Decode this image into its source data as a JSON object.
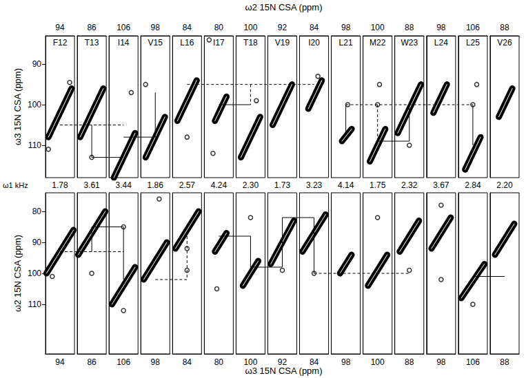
{
  "chart_data": [
    {
      "type": "contour",
      "xlabel": "ω2 15N CSA (ppm)",
      "ylabel": "ω3 15N CSA (ppm)",
      "ylim": [
        83,
        118
      ],
      "yticks": [
        90,
        100,
        110
      ],
      "row_label": "ω1 kHz",
      "row_values": [
        1.78,
        3.61,
        3.44,
        1.86,
        2.57,
        4.24,
        {
          "value": 2.3,
          "label": "2.30"
        },
        1.73,
        3.23,
        4.14,
        1.75,
        2.32,
        3.67,
        2.84,
        {
          "value": 2.2,
          "label": "2.20"
        }
      ],
      "strips": [
        {
          "name": "F12",
          "xlim": [
            86.5,
            101.5
          ],
          "xticks": [
            94
          ],
          "ridges": [
            [
              [
                100,
                96
              ],
              [
                88,
                108
              ]
            ]
          ],
          "peaks": [
            [
              99,
              94.5
            ],
            [
              88,
              111
            ]
          ]
        },
        {
          "name": "T13",
          "xlim": [
            78.5,
            93.5
          ],
          "xticks": [
            86
          ],
          "ridges": [
            [
              [
                92,
                96
              ],
              [
                80,
                108
              ]
            ]
          ],
          "peaks": [
            [
              86,
              113
            ]
          ]
        },
        {
          "name": "I14",
          "xlim": [
            98.5,
            113.5
          ],
          "xticks": [
            106
          ],
          "ridges": [
            [
              [
                112,
                107
              ],
              [
                101,
                118
              ]
            ]
          ],
          "peaks": [
            [
              110,
              97
            ]
          ]
        },
        {
          "name": "V15",
          "xlim": [
            90.5,
            105.5
          ],
          "xticks": [
            98
          ],
          "ridges": [
            [
              [
                103,
                103
              ],
              [
                93,
                113
              ]
            ]
          ],
          "peaks": [
            [
              93,
              95
            ]
          ]
        },
        {
          "name": "L16",
          "xlim": [
            76.5,
            91.5
          ],
          "xticks": [
            84
          ],
          "ridges": [
            [
              [
                89,
                94
              ],
              [
                79,
                104
              ]
            ]
          ],
          "peaks": [
            [
              84,
              108
            ]
          ]
        },
        {
          "name": "I17",
          "xlim": [
            72.5,
            87.5
          ],
          "xticks": [
            80
          ],
          "ridges": [
            [
              [
                84,
                98
              ],
              [
                78,
                104
              ]
            ]
          ],
          "peaks": [
            [
              75,
              84
            ],
            [
              77,
              112
            ]
          ]
        },
        {
          "name": "T18",
          "xlim": [
            92.5,
            107.5
          ],
          "xticks": [
            100
          ],
          "ridges": [
            [
              [
                105,
                103
              ],
              [
                95,
                113
              ]
            ]
          ],
          "peaks": [
            [
              103,
              99
            ]
          ]
        },
        {
          "name": "V19",
          "xlim": [
            84.5,
            99.5
          ],
          "xticks": [
            92
          ],
          "ridges": [
            [
              [
                97,
                95
              ],
              [
                87,
                105
              ]
            ]
          ],
          "peaks": []
        },
        {
          "name": "I20",
          "xlim": [
            76.5,
            91.5
          ],
          "xticks": [
            84
          ],
          "ridges": [
            [
              [
                88,
                94
              ],
              [
                81,
                101
              ]
            ]
          ],
          "peaks": [
            [
              86,
              93
            ]
          ]
        },
        {
          "name": "L21",
          "xlim": [
            90.5,
            105.5
          ],
          "xticks": [
            98
          ],
          "ridges": [
            [
              [
                101,
                106
              ],
              [
                96,
                109
              ]
            ]
          ],
          "peaks": [
            [
              99,
              100
            ]
          ]
        },
        {
          "name": "M22",
          "xlim": [
            92.5,
            107.5
          ],
          "xticks": [
            100
          ],
          "ridges": [
            [
              [
                104,
                106
              ],
              [
                96,
                114
              ]
            ]
          ],
          "peaks": [
            [
              101,
              95
            ],
            [
              100,
              100
            ]
          ]
        },
        {
          "name": "W23",
          "xlim": [
            80.5,
            95.5
          ],
          "xticks": [
            88
          ],
          "ridges": [
            [
              [
                94,
                95
              ],
              [
                82,
                107
              ]
            ]
          ],
          "peaks": [
            [
              88,
              110
            ]
          ]
        },
        {
          "name": "L24",
          "xlim": [
            90.5,
            105.5
          ],
          "xticks": [
            98
          ],
          "ridges": [
            [
              [
                101,
                95
              ],
              [
                94,
                102
              ]
            ]
          ],
          "peaks": []
        },
        {
          "name": "L25",
          "xlim": [
            98.5,
            113.5
          ],
          "xticks": [
            106
          ],
          "ridges": [
            [
              [
                110,
                108
              ],
              [
                102,
                116
              ]
            ]
          ],
          "peaks": [
            [
              106,
              100
            ],
            [
              108,
              95
            ]
          ]
        },
        {
          "name": "V26",
          "xlim": [
            80.5,
            95.5
          ],
          "xticks": [
            88
          ],
          "ridges": [
            [
              [
                92,
                96
              ],
              [
                85,
                103
              ]
            ]
          ],
          "peaks": []
        }
      ],
      "links": [
        {
          "from": 0,
          "to": 2,
          "y": [
            105,
            105
          ],
          "line_style": "dashed"
        },
        {
          "from": 1,
          "to": 1,
          "y": [
            105,
            113
          ],
          "line_style": "solid"
        },
        {
          "from": 1,
          "to": 2,
          "y": [
            113,
            113
          ],
          "line_style": "solid"
        },
        {
          "from": 3,
          "to": 3,
          "y": [
            97,
            108
          ],
          "line_style": "solid"
        },
        {
          "from": 2,
          "to": 3,
          "y": [
            108,
            108
          ],
          "line_style": "solid"
        },
        {
          "from": 4,
          "to": 8,
          "y": [
            95,
            95
          ],
          "line_style": "dashed"
        },
        {
          "from": 6,
          "to": 6,
          "y": [
            95,
            100
          ],
          "line_style": "dashed"
        },
        {
          "from": 5,
          "to": 6,
          "y": [
            100,
            100
          ],
          "line_style": "solid"
        },
        {
          "from": 9,
          "to": 9,
          "y": [
            100,
            107
          ],
          "line_style": "solid"
        },
        {
          "from": 9,
          "to": 13,
          "y": [
            100,
            100
          ],
          "line_style": "dashed"
        },
        {
          "from": 10,
          "to": 10,
          "y": [
            100,
            109
          ],
          "line_style": "dashed"
        },
        {
          "from": 10,
          "to": 11,
          "y": [
            109,
            109
          ],
          "line_style": "solid"
        },
        {
          "from": 11,
          "to": 11,
          "y": [
            100,
            109
          ],
          "line_style": "solid"
        },
        {
          "from": 13,
          "to": 13,
          "y": [
            100,
            110
          ],
          "line_style": "solid"
        }
      ]
    },
    {
      "type": "contour",
      "xlabel": "ω3 15N CSA (ppm)",
      "ylabel": "ω2 15N CSA (ppm)",
      "ylim": [
        74,
        126
      ],
      "yticks": [
        80,
        90,
        100,
        110
      ],
      "strips": [
        {
          "xlim": [
            86.5,
            101.5
          ],
          "xticks": [
            94
          ],
          "ridges": [
            [
              [
                101,
                86
              ],
              [
                87,
                100
              ]
            ]
          ],
          "peaks": [
            [
              90,
              101
            ]
          ]
        },
        {
          "xlim": [
            78.5,
            93.5
          ],
          "xticks": [
            86
          ],
          "ridges": [
            [
              [
                93,
                80
              ],
              [
                79,
                94
              ]
            ]
          ],
          "peaks": [
            [
              86,
              100
            ]
          ]
        },
        {
          "xlim": [
            98.5,
            113.5
          ],
          "xticks": [
            106
          ],
          "ridges": [
            [
              [
                112,
                98
              ],
              [
                100,
                110
              ]
            ]
          ],
          "peaks": [
            [
              106,
              85
            ],
            [
              106,
              112
            ]
          ]
        },
        {
          "xlim": [
            90.5,
            105.5
          ],
          "xticks": [
            98
          ],
          "ridges": [
            [
              [
                104,
                90
              ],
              [
                92,
                102
              ]
            ]
          ],
          "peaks": [
            [
              100,
              76
            ]
          ]
        },
        {
          "xlim": [
            76.5,
            91.5
          ],
          "xticks": [
            84
          ],
          "ridges": [
            [
              [
                90,
                80
              ],
              [
                78,
                92
              ]
            ]
          ],
          "peaks": [
            [
              84,
              92
            ],
            [
              84,
              99
            ]
          ]
        },
        {
          "xlim": [
            72.5,
            87.5
          ],
          "xticks": [
            80
          ],
          "ridges": [
            [
              [
                84,
                87
              ],
              [
                78,
                93
              ]
            ]
          ],
          "peaks": [
            [
              79,
              105
            ]
          ]
        },
        {
          "xlim": [
            92.5,
            107.5
          ],
          "xticks": [
            100
          ],
          "ridges": [
            [
              [
                104,
                96
              ],
              [
                96,
                104
              ]
            ]
          ],
          "peaks": [
            [
              100,
              82
            ]
          ]
        },
        {
          "xlim": [
            84.5,
            99.5
          ],
          "xticks": [
            92
          ],
          "ridges": [
            [
              [
                98,
                83
              ],
              [
                86,
                97
              ]
            ]
          ],
          "peaks": [
            [
              92,
              99
            ]
          ]
        },
        {
          "xlim": [
            76.5,
            91.5
          ],
          "xticks": [
            84
          ],
          "ridges": [
            [
              [
                90,
                81
              ],
              [
                78,
                93
              ]
            ]
          ],
          "peaks": [
            [
              84,
              100
            ]
          ]
        },
        {
          "xlim": [
            90.5,
            105.5
          ],
          "xticks": [
            98
          ],
          "ridges": [
            [
              [
                101,
                94
              ],
              [
                95,
                100
              ]
            ]
          ],
          "peaks": []
        },
        {
          "xlim": [
            92.5,
            107.5
          ],
          "xticks": [
            100
          ],
          "ridges": [
            [
              [
                105,
                94
              ],
              [
                95,
                104
              ]
            ]
          ],
          "peaks": [
            [
              100,
              82
            ]
          ]
        },
        {
          "xlim": [
            80.5,
            95.5
          ],
          "xticks": [
            88
          ],
          "ridges": [
            [
              [
                93,
                83
              ],
              [
                83,
                93
              ]
            ]
          ],
          "peaks": [
            [
              88,
              99
            ]
          ]
        },
        {
          "xlim": [
            90.5,
            105.5
          ],
          "xticks": [
            98
          ],
          "ridges": [
            [
              [
                103,
                82
              ],
              [
                93,
                92
              ]
            ]
          ],
          "peaks": [
            [
              98,
              78
            ],
            [
              98,
              102
            ]
          ]
        },
        {
          "xlim": [
            98.5,
            113.5
          ],
          "xticks": [
            106
          ],
          "ridges": [
            [
              [
                112,
                97
              ],
              [
                100,
                108
              ]
            ]
          ],
          "peaks": [
            [
              106,
              110
            ]
          ]
        },
        {
          "xlim": [
            80.5,
            95.5
          ],
          "xticks": [
            88
          ],
          "ridges": [
            [
              [
                93,
                84
              ],
              [
                83,
                94
              ]
            ]
          ],
          "peaks": []
        }
      ],
      "links": [
        {
          "from": 0,
          "to": 2,
          "y": [
            93,
            93
          ],
          "line_style": "dashed"
        },
        {
          "from": 1,
          "to": 1,
          "y": [
            85,
            93
          ],
          "line_style": "solid"
        },
        {
          "from": 1,
          "to": 2,
          "y": [
            85,
            85
          ],
          "line_style": "solid"
        },
        {
          "from": 2,
          "to": 2,
          "y": [
            85,
            102
          ],
          "line_style": "solid"
        },
        {
          "from": 3,
          "to": 4,
          "y": [
            102,
            102
          ],
          "line_style": "dashed"
        },
        {
          "from": 4,
          "to": 4,
          "y": [
            88,
            102
          ],
          "line_style": "dashed"
        },
        {
          "from": 5,
          "to": 6,
          "y": [
            88,
            88
          ],
          "line_style": "solid"
        },
        {
          "from": 6,
          "to": 6,
          "y": [
            88,
            98
          ],
          "line_style": "solid"
        },
        {
          "from": 6,
          "to": 7,
          "y": [
            98,
            98
          ],
          "line_style": "solid"
        },
        {
          "from": 7,
          "to": 7,
          "y": [
            82,
            98
          ],
          "line_style": "solid"
        },
        {
          "from": 7,
          "to": 8,
          "y": [
            82,
            82
          ],
          "line_style": "solid"
        },
        {
          "from": 8,
          "to": 8,
          "y": [
            82,
            100
          ],
          "line_style": "solid"
        },
        {
          "from": 8,
          "to": 11,
          "y": [
            100,
            100
          ],
          "line_style": "dashed"
        },
        {
          "from": 13,
          "to": 14,
          "y": [
            101,
            101
          ],
          "line_style": "solid"
        }
      ]
    }
  ]
}
